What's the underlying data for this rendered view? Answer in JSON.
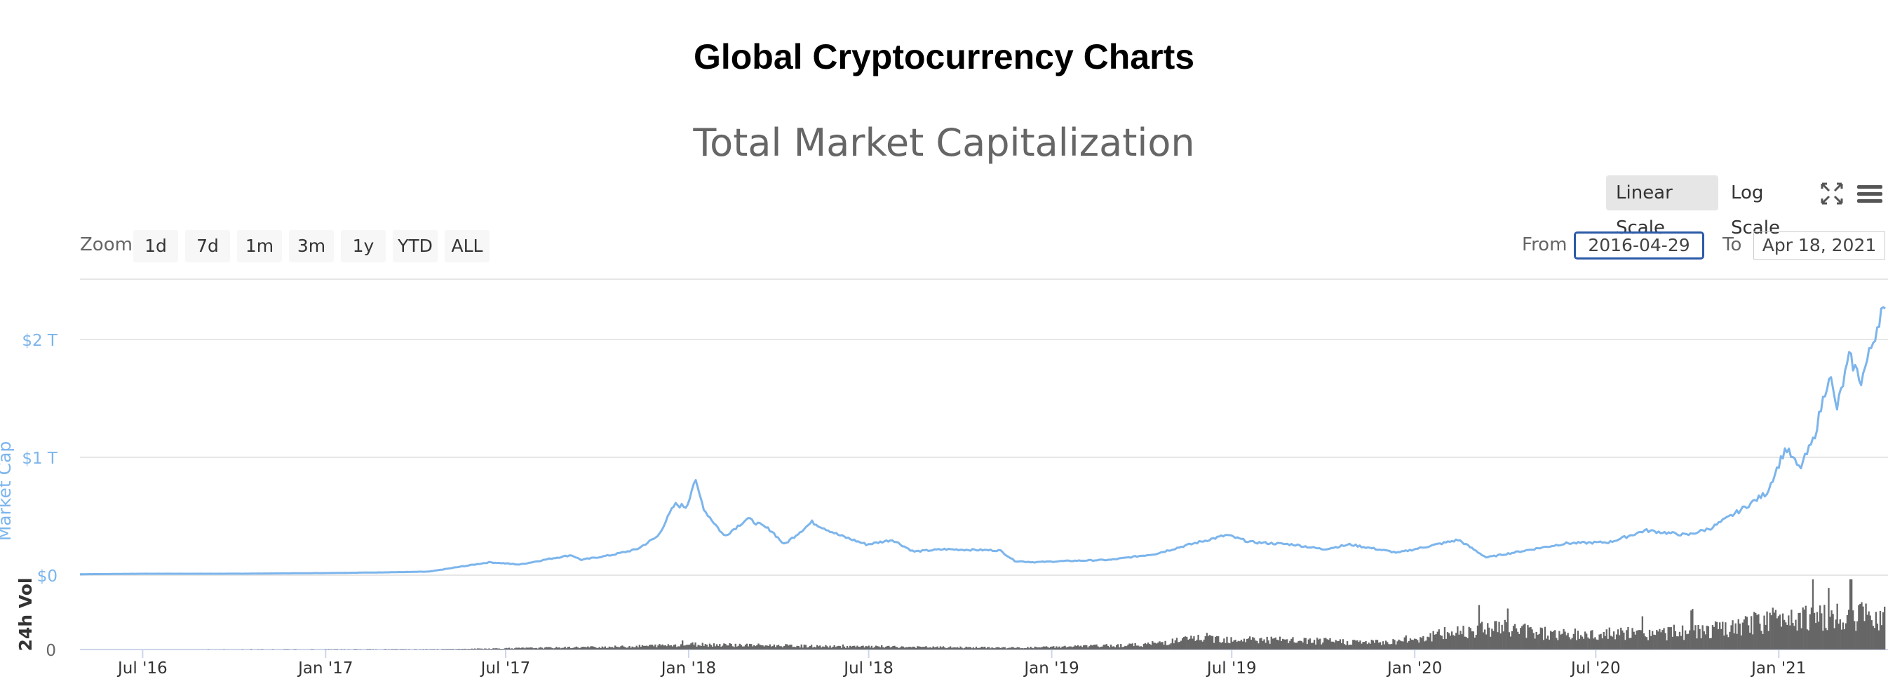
{
  "page": {
    "title": "Global Cryptocurrency Charts",
    "subtitle": "Total Market Capitalization"
  },
  "scale_buttons": {
    "linear": "Linear Scale",
    "log": "Log Scale",
    "active": "linear"
  },
  "icons": {
    "fullscreen": "fullscreen-icon",
    "menu": "hamburger-menu-icon"
  },
  "range_selector": {
    "zoom_label": "Zoom",
    "zoom_buttons": [
      "1d",
      "7d",
      "1m",
      "3m",
      "1y",
      "YTD",
      "ALL"
    ],
    "from_label": "From",
    "from_value": "2016-04-29",
    "to_label": "To",
    "to_value": "Apr 18, 2021"
  },
  "colors": {
    "market_cap_line": "#7cb5ec",
    "volume_bars": "#666666",
    "grid": "#e6e6e6",
    "axis_label": "#7cb5ec"
  },
  "chart_data": {
    "type": "line",
    "title": "Total Market Capitalization",
    "x_ticks": [
      "Jul '16",
      "Jan '17",
      "Jul '17",
      "Jan '18",
      "Jul '18",
      "Jan '19",
      "Jul '19",
      "Jan '20",
      "Jul '20",
      "Jan '21"
    ],
    "x_range": [
      "2016-04-29",
      "2021-04-18"
    ],
    "series": [
      {
        "name": "Market Cap",
        "ylabel": "Market Cap",
        "y_ticks": [
          "$0",
          "$1 T",
          "$2 T"
        ],
        "ylim_trillions": [
          0,
          2.5
        ],
        "unit": "trillions USD",
        "points": [
          [
            "2016-04-29",
            0.008
          ],
          [
            "2016-07-01",
            0.012
          ],
          [
            "2016-10-01",
            0.012
          ],
          [
            "2017-01-01",
            0.018
          ],
          [
            "2017-03-01",
            0.024
          ],
          [
            "2017-04-15",
            0.03
          ],
          [
            "2017-05-15",
            0.07
          ],
          [
            "2017-06-15",
            0.11
          ],
          [
            "2017-07-15",
            0.09
          ],
          [
            "2017-08-15",
            0.14
          ],
          [
            "2017-09-05",
            0.17
          ],
          [
            "2017-09-15",
            0.13
          ],
          [
            "2017-10-15",
            0.17
          ],
          [
            "2017-11-10",
            0.22
          ],
          [
            "2017-12-01",
            0.33
          ],
          [
            "2017-12-18",
            0.6
          ],
          [
            "2017-12-30",
            0.58
          ],
          [
            "2018-01-07",
            0.81
          ],
          [
            "2018-01-17",
            0.55
          ],
          [
            "2018-02-06",
            0.33
          ],
          [
            "2018-03-01",
            0.48
          ],
          [
            "2018-03-25",
            0.38
          ],
          [
            "2018-04-07",
            0.26
          ],
          [
            "2018-05-05",
            0.45
          ],
          [
            "2018-06-01",
            0.34
          ],
          [
            "2018-06-29",
            0.26
          ],
          [
            "2018-07-25",
            0.3
          ],
          [
            "2018-08-15",
            0.2
          ],
          [
            "2018-09-15",
            0.22
          ],
          [
            "2018-11-10",
            0.21
          ],
          [
            "2018-11-25",
            0.12
          ],
          [
            "2018-12-15",
            0.11
          ],
          [
            "2019-01-15",
            0.12
          ],
          [
            "2019-03-01",
            0.13
          ],
          [
            "2019-04-15",
            0.18
          ],
          [
            "2019-05-15",
            0.25
          ],
          [
            "2019-06-26",
            0.34
          ],
          [
            "2019-07-20",
            0.28
          ],
          [
            "2019-09-01",
            0.26
          ],
          [
            "2019-10-01",
            0.22
          ],
          [
            "2019-10-28",
            0.26
          ],
          [
            "2019-12-15",
            0.19
          ],
          [
            "2020-02-14",
            0.3
          ],
          [
            "2020-03-13",
            0.15
          ],
          [
            "2020-04-15",
            0.2
          ],
          [
            "2020-06-01",
            0.27
          ],
          [
            "2020-07-15",
            0.28
          ],
          [
            "2020-08-20",
            0.38
          ],
          [
            "2020-10-01",
            0.34
          ],
          [
            "2020-10-25",
            0.4
          ],
          [
            "2020-11-25",
            0.56
          ],
          [
            "2020-12-20",
            0.7
          ],
          [
            "2021-01-08",
            1.08
          ],
          [
            "2021-01-22",
            0.9
          ],
          [
            "2021-02-05",
            1.15
          ],
          [
            "2021-02-21",
            1.72
          ],
          [
            "2021-02-28",
            1.4
          ],
          [
            "2021-03-13",
            1.85
          ],
          [
            "2021-03-25",
            1.65
          ],
          [
            "2021-04-08",
            2.05
          ],
          [
            "2021-04-14",
            2.25
          ],
          [
            "2021-04-18",
            2.2
          ]
        ]
      },
      {
        "name": "24h Vol",
        "type": "bar",
        "ylabel": "24h Vol",
        "y_ticks": [
          "0"
        ],
        "profile": [
          [
            "2016-04-29",
            0.002
          ],
          [
            "2017-05-01",
            0.006
          ],
          [
            "2017-11-01",
            0.05
          ],
          [
            "2018-01-05",
            0.09
          ],
          [
            "2018-06-01",
            0.05
          ],
          [
            "2018-12-01",
            0.03
          ],
          [
            "2019-04-01",
            0.08
          ],
          [
            "2019-06-01",
            0.2
          ],
          [
            "2019-09-01",
            0.15
          ],
          [
            "2019-12-01",
            0.12
          ],
          [
            "2020-01-15",
            0.22
          ],
          [
            "2020-03-13",
            0.4
          ],
          [
            "2020-06-01",
            0.25
          ],
          [
            "2020-09-01",
            0.28
          ],
          [
            "2020-11-15",
            0.35
          ],
          [
            "2021-01-11",
            0.6
          ],
          [
            "2021-02-23",
            0.55
          ],
          [
            "2021-04-18",
            0.6
          ]
        ],
        "peak_date": "2021-03-14"
      }
    ]
  }
}
